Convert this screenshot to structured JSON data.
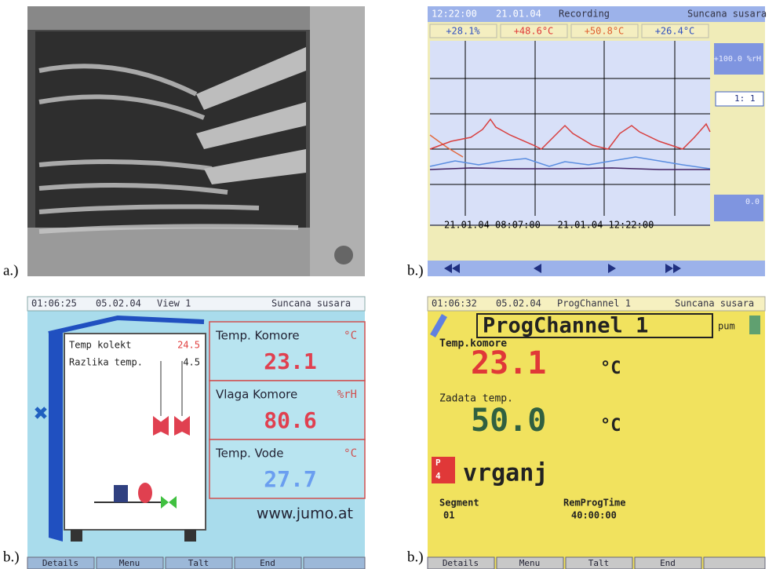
{
  "panel_a": {
    "label": "a.)"
  },
  "panel_b": {
    "label": "b.)",
    "header": {
      "time": "12:22:00",
      "date": "21.01.04",
      "mode": "Recording",
      "title": "Suncana susara"
    },
    "readings": [
      "+28.1%",
      "+48.6°C",
      "+50.8°C",
      "+26.4°C"
    ],
    "scale_top": "+100.0 %rH",
    "zoom": "1: 1",
    "scale_bottom": "0.0",
    "time_range": "21.01.04 08:07:00 — 21.01.04 12:22:00"
  },
  "panel_c": {
    "label": "b.)",
    "header": {
      "time": "01:06:25",
      "date": "05.02.04",
      "mode": "View 1",
      "title": "Suncana susara"
    },
    "inner": [
      {
        "name": "Temp kolekt",
        "value": "24.5"
      },
      {
        "name": "Razlika temp.",
        "value": "4.5"
      }
    ],
    "boxes": [
      {
        "name": "Temp. Komore",
        "unit": "°C",
        "value": "23.1"
      },
      {
        "name": "Vlaga Komore",
        "unit": "%rH",
        "value": "80.6"
      },
      {
        "name": "Temp. Vode",
        "unit": "°C",
        "value": "27.7"
      }
    ],
    "url": "www.jumo.at",
    "buttons": [
      "Details",
      "Menu",
      "Talt",
      "End"
    ]
  },
  "panel_d": {
    "label": "b.)",
    "header": {
      "time": "01:06:32",
      "date": "05.02.04",
      "mode": "ProgChannel 1",
      "title": "Suncana susara"
    },
    "program": "ProgChannel 1",
    "pump": "pum",
    "actual_label": "Temp.komore",
    "actual_value": "23.1",
    "actual_unit": "°C",
    "set_label": "Zadata temp.",
    "set_value": "50.0",
    "set_unit": "°C",
    "icon_p": "P",
    "icon_n": "4",
    "product": "vrganj",
    "segment_label": "Segment",
    "segment_value": "01",
    "remaining_label": "RemProgTime",
    "remaining_value": "40:00:00",
    "buttons": [
      "Details",
      "Menu",
      "Talt",
      "End"
    ]
  }
}
